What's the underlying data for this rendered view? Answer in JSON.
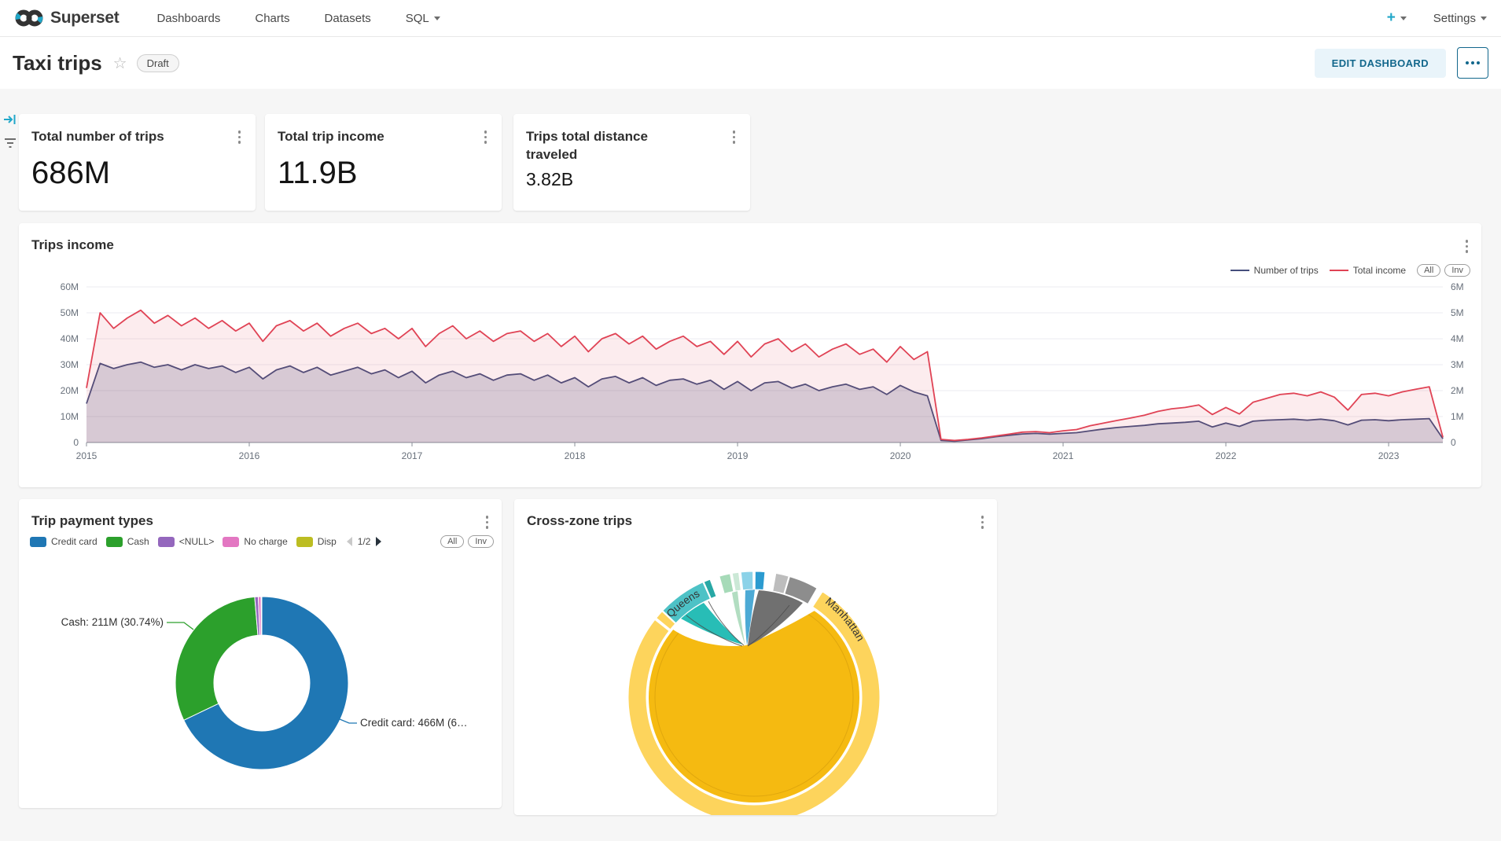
{
  "nav": {
    "brand": "Superset",
    "items": [
      {
        "label": "Dashboards"
      },
      {
        "label": "Charts"
      },
      {
        "label": "Datasets"
      },
      {
        "label": "SQL"
      }
    ],
    "plus_label": "+",
    "settings_label": "Settings"
  },
  "header": {
    "title": "Taxi trips",
    "status_badge": "Draft",
    "edit_button": "EDIT DASHBOARD"
  },
  "kpis": [
    {
      "title": "Total number of trips",
      "value": "686M"
    },
    {
      "title": "Total trip income",
      "value": "11.9B"
    },
    {
      "title": "Trips total distance traveled",
      "value": "3.82B"
    }
  ],
  "trips_income_chart": {
    "title": "Trips income",
    "legend": [
      {
        "label": "Number of trips",
        "color": "#454e7c"
      },
      {
        "label": "Total income",
        "color": "#e04355"
      }
    ],
    "all_label": "All",
    "inv_label": "Inv",
    "y_left_ticks": [
      "0",
      "10M",
      "20M",
      "30M",
      "40M",
      "50M",
      "60M"
    ],
    "y_right_ticks": [
      "0",
      "1M",
      "2M",
      "3M",
      "4M",
      "5M",
      "6M"
    ],
    "x_ticks": [
      "2015",
      "2016",
      "2017",
      "2018",
      "2019",
      "2020",
      "2021",
      "2022",
      "2023"
    ]
  },
  "payment_chart": {
    "title": "Trip payment types",
    "pagination": "1/2",
    "all_label": "All",
    "inv_label": "Inv",
    "callout_cash": "Cash: 211M (30.74%)",
    "callout_credit": "Credit card: 466M (6…"
  },
  "cross_zone_chart": {
    "title": "Cross-zone trips"
  },
  "chart_data": [
    {
      "type": "area",
      "title": "Trips income",
      "x_min": 2015,
      "x_max": 2023.333,
      "x_step_months": 1,
      "xlabel": "",
      "ylabel_left": "Total income",
      "ylim_left": [
        0,
        60000000
      ],
      "ylabel_right": "Number of trips",
      "ylim_right": [
        0,
        6000000
      ],
      "grid": true,
      "legend_position": "top-right",
      "series": [
        {
          "name": "Total income",
          "axis": "left",
          "color": "#e04355",
          "unit": "M",
          "values": [
            21,
            50,
            44,
            48,
            51,
            46,
            49,
            45,
            48,
            44,
            47,
            43,
            46,
            39,
            45,
            47,
            43,
            46,
            41,
            44,
            46,
            42,
            44,
            40,
            44,
            37,
            42,
            45,
            40,
            43,
            39,
            42,
            43,
            39,
            42,
            37,
            41,
            35,
            40,
            42,
            38,
            41,
            36,
            39,
            41,
            37,
            39,
            34,
            39,
            33,
            38,
            40,
            35,
            38,
            33,
            36,
            38,
            34,
            36,
            31,
            37,
            32,
            35,
            1.2,
            0.8,
            1.2,
            1.8,
            2.5,
            3.2,
            4,
            4.2,
            3.8,
            4.5,
            5,
            6.5,
            7.5,
            8.5,
            9.5,
            10.5,
            12,
            13,
            13.5,
            14.5,
            10.8,
            13.5,
            11,
            15.5,
            17,
            18.5,
            19,
            18,
            19.5,
            17.5,
            12.5,
            18.5,
            19,
            18,
            19.5,
            20.5,
            21.5,
            2
          ]
        },
        {
          "name": "Number of trips",
          "axis": "right",
          "color": "#454e7c",
          "unit": "M",
          "values": [
            1.5,
            3.05,
            2.85,
            3.0,
            3.1,
            2.9,
            3.0,
            2.8,
            3.0,
            2.85,
            2.95,
            2.7,
            2.9,
            2.45,
            2.8,
            2.95,
            2.7,
            2.9,
            2.6,
            2.75,
            2.9,
            2.65,
            2.8,
            2.5,
            2.75,
            2.3,
            2.6,
            2.75,
            2.5,
            2.65,
            2.4,
            2.6,
            2.65,
            2.4,
            2.6,
            2.3,
            2.5,
            2.15,
            2.45,
            2.55,
            2.3,
            2.5,
            2.2,
            2.4,
            2.45,
            2.25,
            2.4,
            2.05,
            2.35,
            2.0,
            2.3,
            2.35,
            2.1,
            2.25,
            2.0,
            2.15,
            2.25,
            2.05,
            2.15,
            1.85,
            2.2,
            1.95,
            1.8,
            0.08,
            0.05,
            0.1,
            0.15,
            0.22,
            0.28,
            0.33,
            0.35,
            0.32,
            0.35,
            0.38,
            0.45,
            0.52,
            0.58,
            0.62,
            0.66,
            0.72,
            0.75,
            0.78,
            0.82,
            0.6,
            0.75,
            0.62,
            0.82,
            0.86,
            0.88,
            0.9,
            0.86,
            0.9,
            0.84,
            0.68,
            0.86,
            0.88,
            0.84,
            0.88,
            0.9,
            0.92,
            0.15
          ]
        }
      ]
    },
    {
      "type": "pie",
      "title": "Trip payment types",
      "donut": true,
      "categories": [
        "Credit card",
        "Cash",
        "<NULL>",
        "No charge",
        "Disp"
      ],
      "values": [
        466,
        211,
        4.5,
        3.5,
        1
      ],
      "unit": "M trips",
      "colors": [
        "#1f77b4",
        "#2ca02c",
        "#9467bd",
        "#e377c2",
        "#bcbd22"
      ],
      "labels_shown": [
        "Credit card: 466M (6…",
        "Cash: 211M (30.74%)"
      ]
    },
    {
      "type": "chord",
      "title": "Cross-zone trips",
      "labels": {
        "queens": "Queens",
        "manhattan": "Manhattan"
      },
      "colors": {
        "outer_gold": "#FDD45C",
        "inner_gold": "#F5BA11",
        "queens": "#4DC2C6",
        "queens_chord": "#1CB9B2",
        "teal_dark": "#28A8A5",
        "green_light": "#A6DAB8",
        "mint": "#CBE8D6",
        "cyan_light": "#8BD2E8",
        "blue": "#2B9BD0",
        "gray_light": "#BDBDBD",
        "gray": "#8D8D8D",
        "chord_gray": "#707070",
        "chord_blue": "#2E9BCE",
        "chord_green": "#9FD4B2"
      },
      "segments": [
        {
          "from": 33,
          "to": 308,
          "color": "outer_gold"
        },
        {
          "from": 309,
          "to": 313,
          "color": "outer_gold"
        },
        {
          "from": 313.5,
          "to": 336,
          "color": "queens"
        },
        {
          "from": 336.5,
          "to": 339.5,
          "color": "teal_dark"
        },
        {
          "from": 344,
          "to": 349,
          "color": "green_light"
        },
        {
          "from": 350,
          "to": 353,
          "color": "mint"
        },
        {
          "from": 354,
          "to": 359.5,
          "color": "cyan_light"
        },
        {
          "from": 0.5,
          "to": 5,
          "color": "blue"
        },
        {
          "from": 10,
          "to": 16,
          "color": "gray_light"
        },
        {
          "from": 16.5,
          "to": 30,
          "color": "gray"
        }
      ]
    }
  ]
}
